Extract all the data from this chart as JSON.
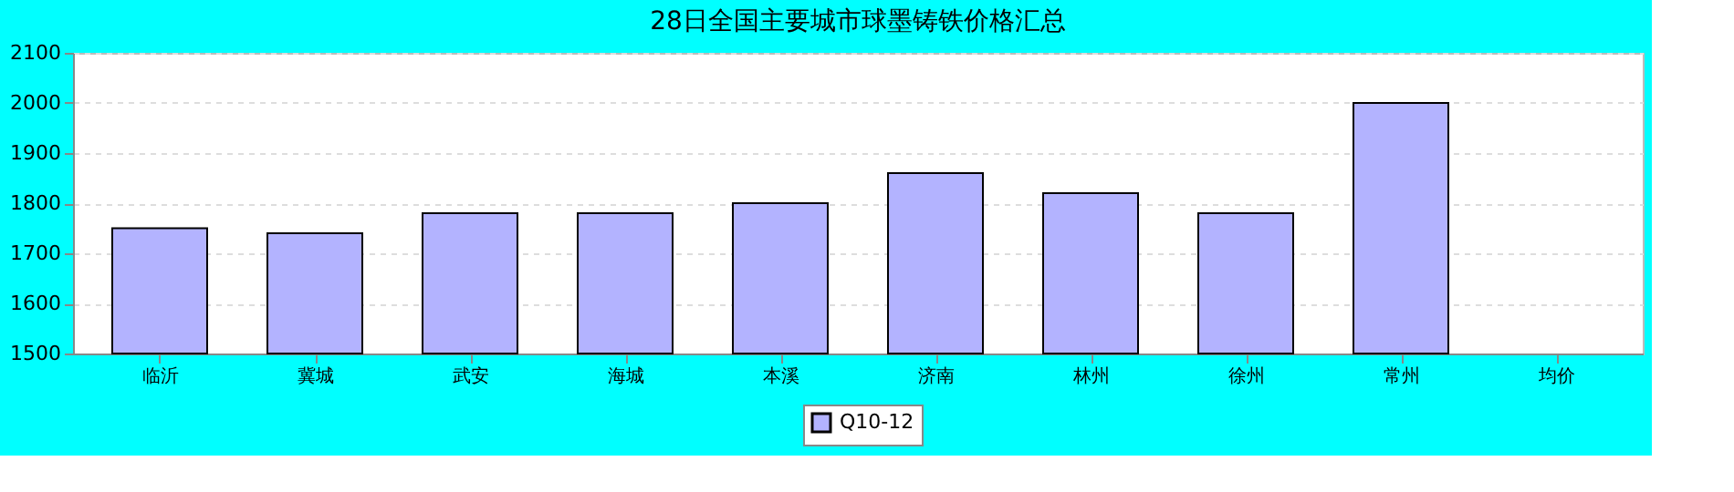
{
  "chart_data": {
    "type": "bar",
    "title": "28日全国主要城市球墨铸铁价格汇总",
    "categories": [
      "临沂",
      "冀城",
      "武安",
      "海城",
      "本溪",
      "济南",
      "林州",
      "徐州",
      "常州",
      "均价"
    ],
    "series": [
      {
        "name": "Q10-12",
        "color": "#b3b3ff",
        "values": [
          1750,
          1740,
          1780,
          1780,
          1800,
          1860,
          1820,
          1780,
          2000,
          null
        ]
      }
    ],
    "ylim": [
      1500,
      2100
    ],
    "yticks": [
      1500,
      1600,
      1700,
      1800,
      1900,
      2000,
      2100
    ],
    "grid": "y",
    "legend": "bottom"
  }
}
